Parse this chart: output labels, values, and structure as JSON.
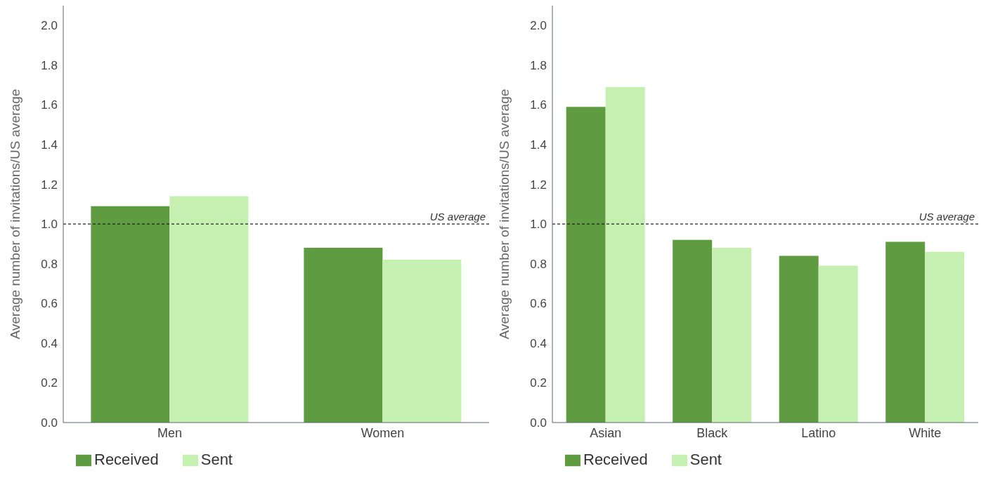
{
  "chart_data": [
    {
      "type": "bar",
      "ylabel": "Average number of invitations/US average",
      "categories": [
        "Men",
        "Women"
      ],
      "series": [
        {
          "name": "Received",
          "color": "#5f9b41",
          "values": [
            1.09,
            0.88
          ]
        },
        {
          "name": "Sent",
          "color": "#c6f0b2",
          "values": [
            1.14,
            0.82
          ]
        }
      ],
      "ylim": [
        0,
        2.1
      ],
      "yticks": [
        {
          "value": 0,
          "label": "0.0"
        },
        {
          "value": 0.2,
          "label": "0.2"
        },
        {
          "value": 0.4,
          "label": "0.4"
        },
        {
          "value": 0.6,
          "label": "0.6"
        },
        {
          "value": 0.8,
          "label": "0.8"
        },
        {
          "value": 1,
          "label": "1.0"
        },
        {
          "value": 1.2,
          "label": "1.2"
        },
        {
          "value": 1.4,
          "label": "1.4"
        },
        {
          "value": 1.6,
          "label": "1.6"
        },
        {
          "value": 1.8,
          "label": "1.8"
        },
        {
          "value": 2,
          "label": "2.0"
        }
      ],
      "ref_lines": [
        {
          "axis": "y",
          "value": 1,
          "label": "US average",
          "line_style": "dashed",
          "color": "#222222"
        }
      ],
      "grid": false,
      "legend": "bottom left"
    },
    {
      "type": "bar",
      "ylabel": "Average number of invitations/US average",
      "categories": [
        "Asian",
        "Black",
        "Latino",
        "White"
      ],
      "series": [
        {
          "name": "Received",
          "color": "#5f9b41",
          "values": [
            1.59,
            0.92,
            0.84,
            0.91
          ]
        },
        {
          "name": "Sent",
          "color": "#c6f0b2",
          "values": [
            1.69,
            0.88,
            0.79,
            0.86
          ]
        }
      ],
      "ylim": [
        0,
        2.1
      ],
      "yticks": [
        {
          "value": 0,
          "label": "0.0"
        },
        {
          "value": 0.2,
          "label": "0.2"
        },
        {
          "value": 0.4,
          "label": "0.4"
        },
        {
          "value": 0.6,
          "label": "0.6"
        },
        {
          "value": 0.8,
          "label": "0.8"
        },
        {
          "value": 1,
          "label": "1.0"
        },
        {
          "value": 1.2,
          "label": "1.2"
        },
        {
          "value": 1.4,
          "label": "1.4"
        },
        {
          "value": 1.6,
          "label": "1.6"
        },
        {
          "value": 1.8,
          "label": "1.8"
        },
        {
          "value": 2,
          "label": "2.0"
        }
      ],
      "ref_lines": [
        {
          "axis": "y",
          "value": 1,
          "label": "US average",
          "line_style": "dashed",
          "color": "#222222"
        }
      ],
      "grid": false,
      "legend": "bottom left"
    }
  ]
}
